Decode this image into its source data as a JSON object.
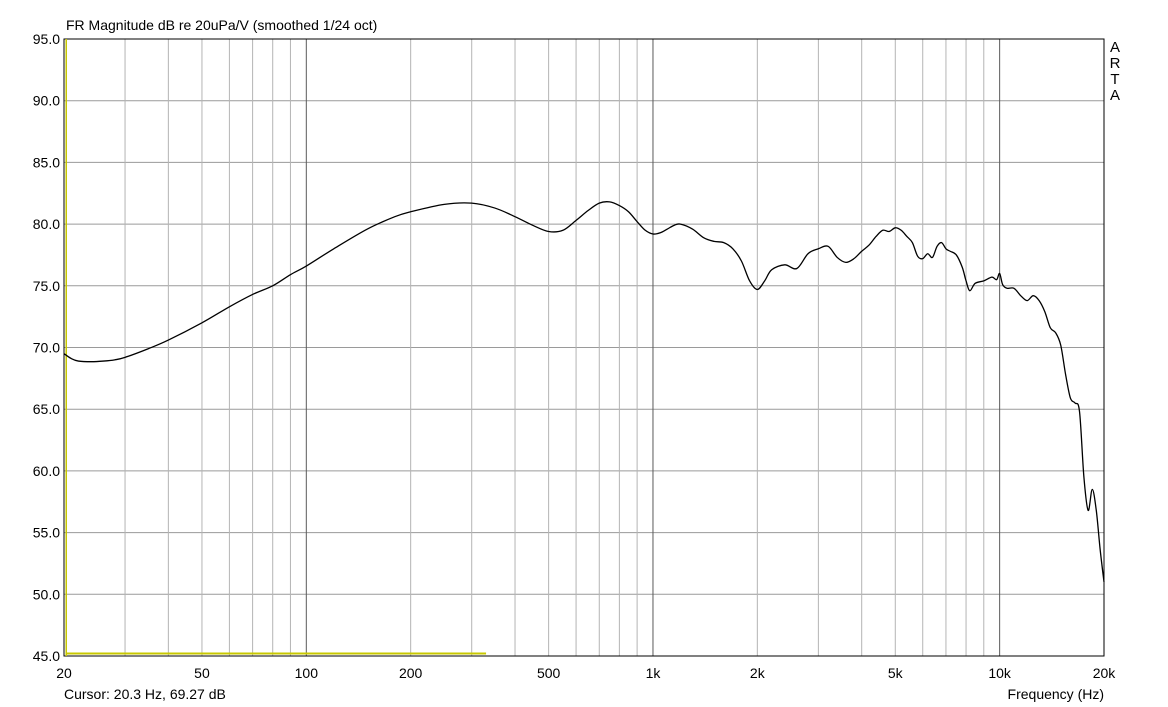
{
  "chart_data": {
    "type": "line",
    "title": "FR Magnitude dB re 20uPa/V (smoothed 1/24 oct)",
    "xlabel": "Frequency (Hz)",
    "ylabel": "",
    "x_scale": "log",
    "xlim": [
      20,
      20000
    ],
    "ylim": [
      45,
      95
    ],
    "x_ticks": [
      20,
      50,
      100,
      200,
      500,
      1000,
      2000,
      5000,
      10000,
      20000
    ],
    "x_tick_labels": [
      "20",
      "50",
      "100",
      "200",
      "500",
      "1k",
      "2k",
      "5k",
      "10k",
      "20k"
    ],
    "y_ticks": [
      45,
      50,
      55,
      60,
      65,
      70,
      75,
      80,
      85,
      90,
      95
    ],
    "y_tick_labels": [
      "45.0",
      "50.0",
      "55.0",
      "60.0",
      "65.0",
      "70.0",
      "75.0",
      "80.0",
      "85.0",
      "90.0",
      "95.0"
    ],
    "grid": true,
    "brand": "ARTA",
    "cursor_text": "Cursor: 20.3 Hz, 69.27 dB",
    "cursor_line": {
      "x_hz": 20.3,
      "x_end_hz": 330,
      "y_db": 45.2
    },
    "series": [
      {
        "color": "#000000",
        "x": [
          20,
          21,
          22,
          24,
          26,
          28,
          30,
          35,
          40,
          50,
          60,
          70,
          80,
          90,
          100,
          120,
          150,
          180,
          200,
          250,
          300,
          350,
          400,
          450,
          500,
          550,
          600,
          650,
          700,
          750,
          800,
          850,
          900,
          950,
          1000,
          1050,
          1100,
          1150,
          1200,
          1300,
          1400,
          1500,
          1600,
          1700,
          1800,
          1900,
          2000,
          2100,
          2200,
          2400,
          2600,
          2800,
          3000,
          3200,
          3400,
          3600,
          3800,
          4000,
          4200,
          4400,
          4600,
          4800,
          5000,
          5200,
          5400,
          5600,
          5800,
          6000,
          6200,
          6400,
          6600,
          6800,
          7000,
          7200,
          7500,
          7800,
          8000,
          8200,
          8500,
          9000,
          9500,
          9800,
          10000,
          10200,
          10500,
          11000,
          11500,
          12000,
          12500,
          13000,
          13500,
          14000,
          14500,
          15000,
          15500,
          16000,
          16500,
          17000,
          17500,
          18000,
          18500,
          19000,
          19500,
          20000
        ],
        "y": [
          69.5,
          69.1,
          68.9,
          68.85,
          68.9,
          69.0,
          69.2,
          69.9,
          70.6,
          72.0,
          73.3,
          74.3,
          75.0,
          75.9,
          76.6,
          78.0,
          79.6,
          80.6,
          81.0,
          81.6,
          81.7,
          81.3,
          80.6,
          79.9,
          79.4,
          79.5,
          80.3,
          81.1,
          81.7,
          81.8,
          81.5,
          81.0,
          80.2,
          79.5,
          79.2,
          79.3,
          79.6,
          79.9,
          80.0,
          79.6,
          78.9,
          78.6,
          78.5,
          78.0,
          77.0,
          75.4,
          74.7,
          75.4,
          76.3,
          76.7,
          76.4,
          77.6,
          78.0,
          78.2,
          77.3,
          76.9,
          77.2,
          77.8,
          78.3,
          79.0,
          79.5,
          79.4,
          79.7,
          79.5,
          79.0,
          78.5,
          77.4,
          77.2,
          77.6,
          77.3,
          78.2,
          78.5,
          78.0,
          77.8,
          77.5,
          76.5,
          75.4,
          74.6,
          75.2,
          75.4,
          75.7,
          75.5,
          76.0,
          75.1,
          74.8,
          74.8,
          74.2,
          73.8,
          74.2,
          73.8,
          72.9,
          71.6,
          71.2,
          70.2,
          67.8,
          65.9,
          65.5,
          64.8,
          59.5,
          56.8,
          58.5,
          56.8,
          53.6,
          51.0
        ]
      }
    ]
  }
}
